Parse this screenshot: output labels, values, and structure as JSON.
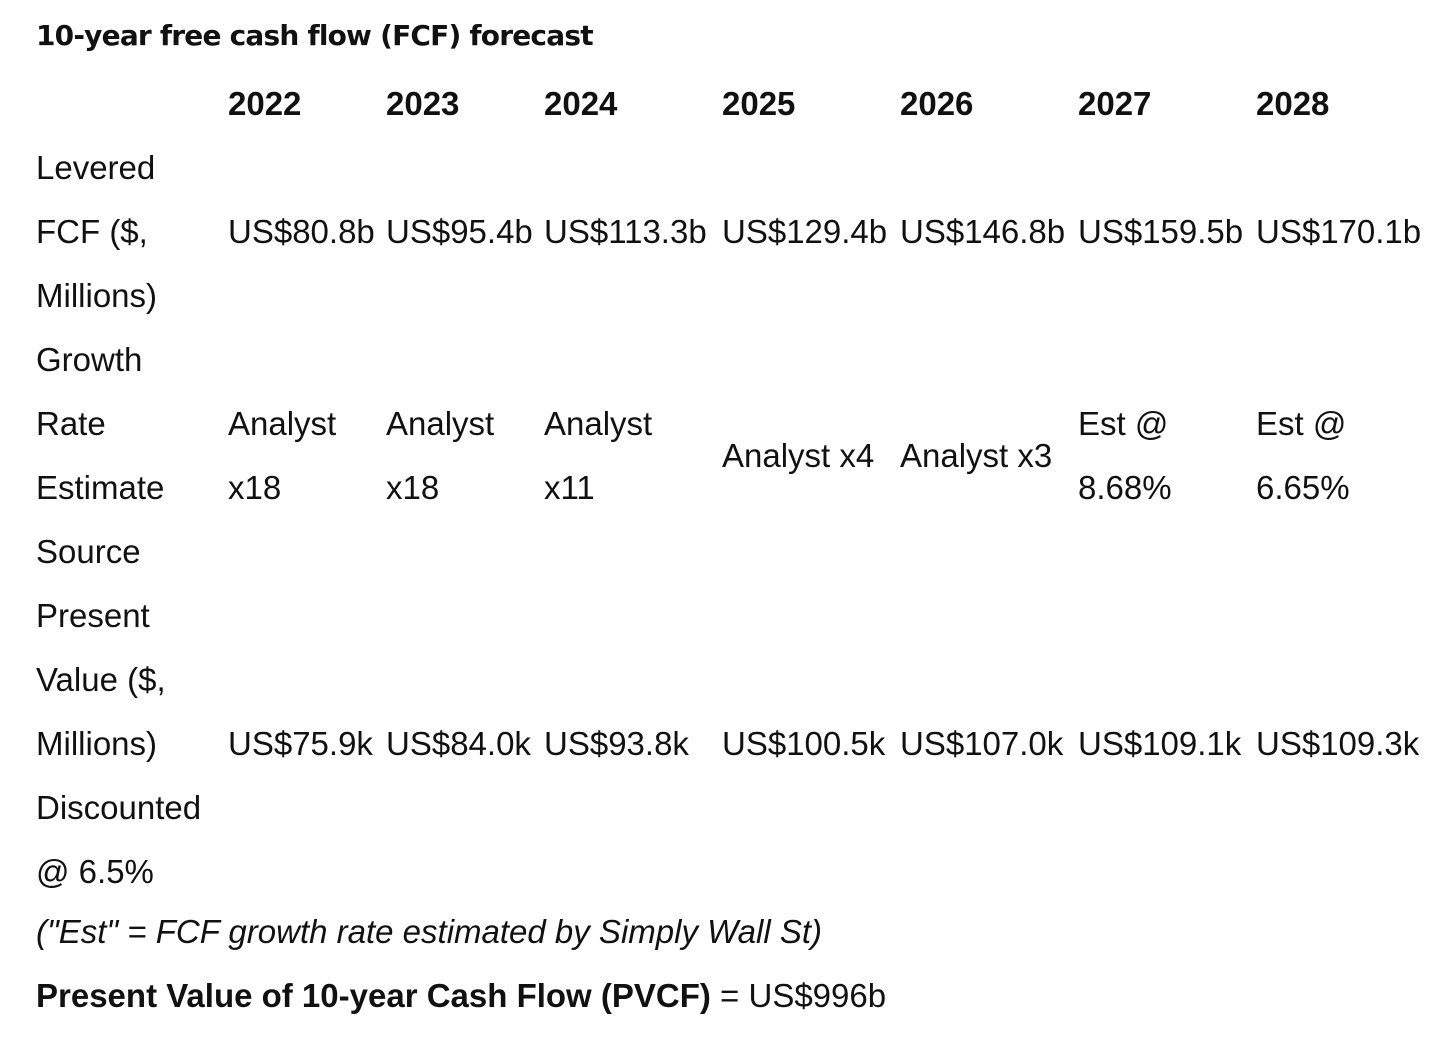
{
  "title": "10-year free cash flow (FCF) forecast",
  "table": {
    "years": [
      "2022",
      "2023",
      "2024",
      "2025",
      "2026",
      "2027",
      "2028"
    ],
    "rows": [
      {
        "label_lines": [
          "Levered",
          "FCF ($,",
          "Millions)"
        ],
        "cells": [
          [
            "US$80.8b"
          ],
          [
            "US$95.4b"
          ],
          [
            "US$113.3b"
          ],
          [
            "US$129.4b"
          ],
          [
            "US$146.8b"
          ],
          [
            "US$159.5b"
          ],
          [
            "US$170.1b"
          ]
        ]
      },
      {
        "label_lines": [
          "Growth",
          "Rate",
          "Estimate",
          "Source"
        ],
        "cells": [
          [
            "Analyst",
            "x18"
          ],
          [
            "Analyst",
            "x18"
          ],
          [
            "Analyst",
            "x11"
          ],
          [
            "Analyst x4"
          ],
          [
            "Analyst x3"
          ],
          [
            "Est @",
            "8.68%"
          ],
          [
            "Est @",
            "6.65%"
          ]
        ]
      },
      {
        "label_lines": [
          "Present",
          "Value ($,",
          "Millions)",
          "Discounted",
          "@ 6.5%"
        ],
        "cells": [
          [
            "US$75.9k"
          ],
          [
            "US$84.0k"
          ],
          [
            "US$93.8k"
          ],
          [
            "US$100.5k"
          ],
          [
            "US$107.0k"
          ],
          [
            "US$109.1k"
          ],
          [
            "US$109.3k"
          ]
        ]
      }
    ]
  },
  "footnote": "(\"Est\" = FCF growth rate estimated by Simply Wall St)",
  "pvcf": {
    "label": "Present Value of 10-year Cash Flow (PVCF)",
    "value": " = US$996b"
  }
}
